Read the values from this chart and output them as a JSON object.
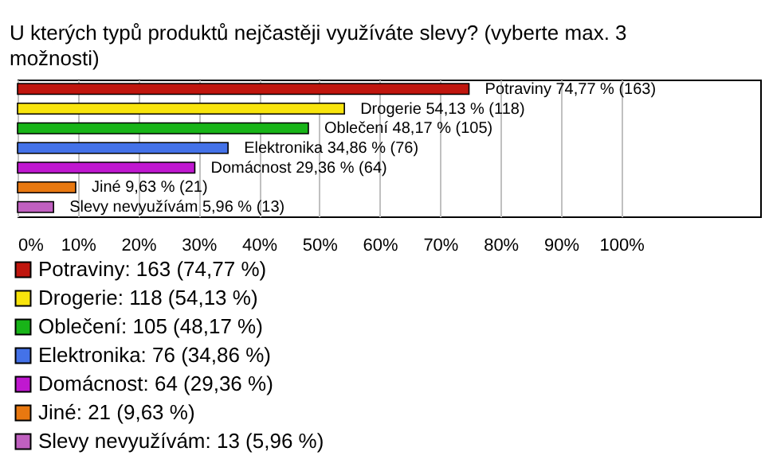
{
  "chart_data": {
    "type": "bar",
    "orientation": "horizontal",
    "title": "U kterých typů produktů nejčastěji využíváte slevy? (vyberte max. 3 možnosti)",
    "categories": [
      null,
      null,
      null,
      null,
      null,
      null,
      null
    ],
    "series": [
      {
        "name": "Potraviny: 163 (74,77 %)",
        "color": "#c0160e",
        "values": [
          74.77,
          null,
          null,
          null,
          null,
          null,
          null
        ],
        "value_labels": [
          "Potraviny 74,77 % (163)",
          null,
          null,
          null,
          null,
          null,
          null
        ]
      },
      {
        "name": "Drogerie: 118 (54,13 %)",
        "color": "#f8e40c",
        "values": [
          null,
          54.13,
          null,
          null,
          null,
          null,
          null
        ],
        "value_labels": [
          null,
          "Drogerie 54,13 % (118)",
          null,
          null,
          null,
          null,
          null
        ]
      },
      {
        "name": "Oblečení: 105 (48,17 %)",
        "color": "#18b418",
        "values": [
          null,
          null,
          48.17,
          null,
          null,
          null,
          null
        ],
        "value_labels": [
          null,
          null,
          "Oblečení 48,17 % (105)",
          null,
          null,
          null,
          null
        ]
      },
      {
        "name": "Elektronika: 76 (34,86 %)",
        "color": "#4472e8",
        "values": [
          null,
          null,
          null,
          34.86,
          null,
          null,
          null
        ],
        "value_labels": [
          null,
          null,
          null,
          "Elektronika 34,86 % (76)",
          null,
          null,
          null
        ]
      },
      {
        "name": "Domácnost: 64 (29,36 %)",
        "color": "#c018d0",
        "values": [
          null,
          null,
          null,
          null,
          29.36,
          null,
          null
        ],
        "value_labels": [
          null,
          null,
          null,
          null,
          "Domácnost 29,36 % (64)",
          null,
          null
        ]
      },
      {
        "name": "Jiné: 21 (9,63 %)",
        "color": "#e87810",
        "values": [
          null,
          null,
          null,
          null,
          null,
          9.63,
          null
        ],
        "value_labels": [
          null,
          null,
          null,
          null,
          null,
          "Jiné 9,63 % (21)",
          null
        ]
      },
      {
        "name": "Slevy nevyužívám: 13 (5,96 %)",
        "color": "#c060c0",
        "values": [
          null,
          null,
          null,
          null,
          null,
          null,
          5.96
        ],
        "value_labels": [
          null,
          null,
          null,
          null,
          null,
          null,
          "Slevy nevyužívám 5,96 % (13)"
        ]
      }
    ],
    "xlim": [
      0,
      123
    ],
    "xticks": [
      {
        "value": 0,
        "label": "0%"
      },
      {
        "value": 10,
        "label": "10%"
      },
      {
        "value": 20,
        "label": "20%"
      },
      {
        "value": 30,
        "label": "30%"
      },
      {
        "value": 40,
        "label": "40%"
      },
      {
        "value": 50,
        "label": "50%"
      },
      {
        "value": 60,
        "label": "60%"
      },
      {
        "value": 70,
        "label": "70%"
      },
      {
        "value": 80,
        "label": "80%"
      },
      {
        "value": 90,
        "label": "90%"
      },
      {
        "value": 100,
        "label": "100%"
      }
    ],
    "grid": "x",
    "tick_labels": "x",
    "legend": "bottom left"
  }
}
